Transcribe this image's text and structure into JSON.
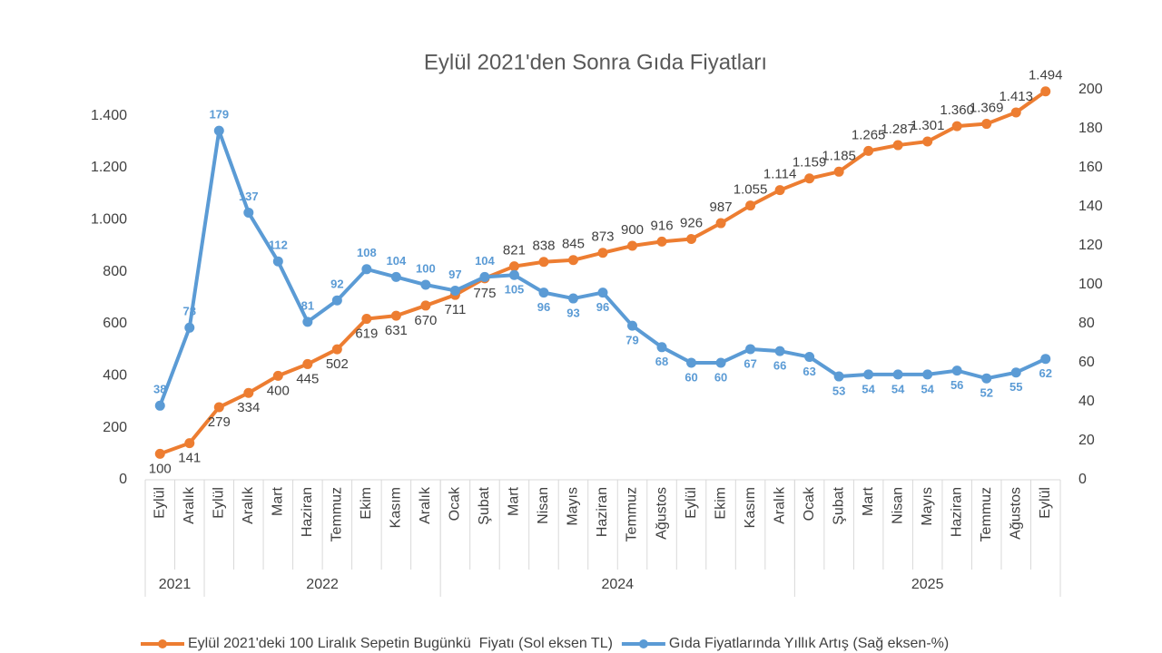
{
  "chart_data": {
    "type": "line",
    "title": "Eylül 2021'den Sonra Gıda Fiyatları",
    "category_groups": [
      {
        "label": "2021",
        "categories": [
          "Eylül",
          "Aralık"
        ]
      },
      {
        "label": "2022",
        "categories": [
          "Eylül",
          "Aralık",
          "Mart",
          "Haziran",
          "Temmuz",
          "Ekim",
          "Kasım",
          "Aralık"
        ]
      },
      {
        "label": "2024",
        "categories": [
          "Ocak",
          "Şubat",
          "Mart",
          "Nisan",
          "Mayıs",
          "Haziran",
          "Temmuz",
          "Ağustos",
          "Eylül",
          "Ekim",
          "Kasım",
          "Aralık"
        ]
      },
      {
        "label": "2025",
        "categories": [
          "Ocak",
          "Şubat",
          "Mart",
          "Nisan",
          "Mayıs",
          "Haziran",
          "Temmuz",
          "Ağustos",
          "Eylül"
        ]
      }
    ],
    "series": [
      {
        "name": "Eylül 2021'deki 100 Liralık Sepetin Bugünkü  Fiyatı (Sol eksen TL)",
        "color": "#ed7d31",
        "values": [
          100,
          141,
          279,
          334,
          400,
          445,
          502,
          619,
          631,
          670,
          711,
          775,
          821,
          838,
          845,
          873,
          900,
          916,
          926,
          987,
          1055,
          1114,
          1159,
          1185,
          1265,
          1287,
          1301,
          1360,
          1369,
          1413,
          1494
        ],
        "value_labels": [
          "100",
          "141",
          "279",
          "334",
          "400",
          "445",
          "502",
          "619",
          "631",
          "670",
          "711",
          "775",
          "821",
          "838",
          "845",
          "873",
          "900",
          "916",
          "926",
          "987",
          "1.055",
          "1.114",
          "1.159",
          "1.185",
          "1.265",
          "1.287",
          "1.301",
          "1.360",
          "1.369",
          "1.413",
          "1.494"
        ]
      },
      {
        "name": "Gıda Fiyatlarında Yıllık Artış (Sağ eksen-%)",
        "color": "#5b9bd5",
        "axis": "y2",
        "values": [
          38,
          78,
          179,
          137,
          112,
          81,
          92,
          108,
          104,
          100,
          97,
          104,
          105,
          96,
          93,
          96,
          79,
          68,
          60,
          60,
          67,
          66,
          63,
          53,
          54,
          54,
          54,
          56,
          52,
          55,
          62
        ]
      }
    ],
    "ylim": [
      0,
      1500
    ],
    "yticks": [
      0,
      200,
      400,
      600,
      800,
      {
        "value": 1000,
        "label": "1.000"
      },
      {
        "value": 1200,
        "label": "1.200"
      },
      {
        "value": 1400,
        "label": "1.400"
      }
    ],
    "y2lim": [
      0,
      200
    ],
    "y2ticks": [
      0,
      20,
      40,
      60,
      80,
      100,
      120,
      140,
      160,
      180,
      200
    ],
    "legend": "bottom"
  }
}
